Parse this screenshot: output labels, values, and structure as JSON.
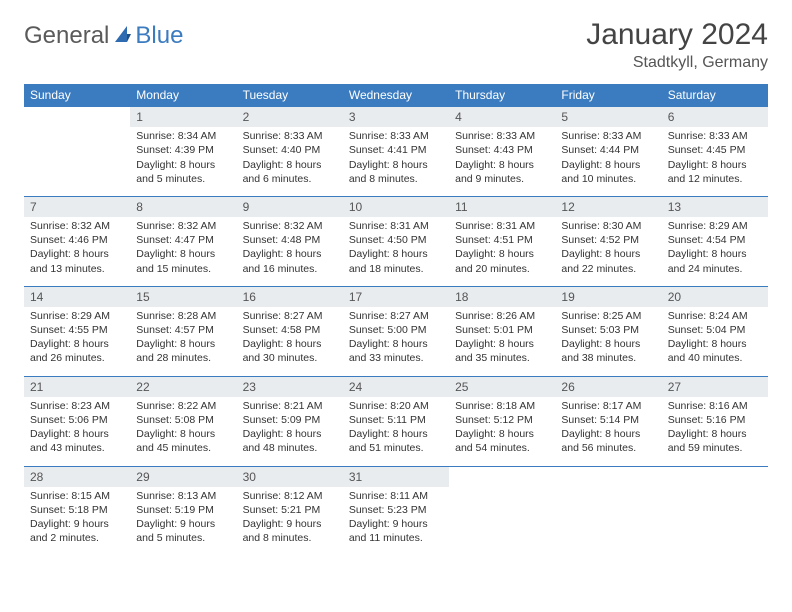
{
  "logo": {
    "general": "General",
    "blue": "Blue"
  },
  "title": "January 2024",
  "location": "Stadtkyll, Germany",
  "colors": {
    "header_bg": "#3b7bbf",
    "header_text": "#ffffff",
    "daynum_bg": "#e9ecef",
    "border": "#3b7bbf",
    "body_text": "#333333",
    "logo_gray": "#5a5a5a",
    "logo_blue": "#3b7bbf"
  },
  "typography": {
    "title_fontsize": 30,
    "location_fontsize": 16,
    "dayheader_fontsize": 12,
    "daynum_fontsize": 12,
    "cell_fontsize": 10.5
  },
  "day_headers": [
    "Sunday",
    "Monday",
    "Tuesday",
    "Wednesday",
    "Thursday",
    "Friday",
    "Saturday"
  ],
  "weeks": [
    {
      "nums": [
        "",
        "1",
        "2",
        "3",
        "4",
        "5",
        "6"
      ],
      "cells": [
        null,
        {
          "sunrise": "Sunrise: 8:34 AM",
          "sunset": "Sunset: 4:39 PM",
          "daylight": "Daylight: 8 hours and 5 minutes."
        },
        {
          "sunrise": "Sunrise: 8:33 AM",
          "sunset": "Sunset: 4:40 PM",
          "daylight": "Daylight: 8 hours and 6 minutes."
        },
        {
          "sunrise": "Sunrise: 8:33 AM",
          "sunset": "Sunset: 4:41 PM",
          "daylight": "Daylight: 8 hours and 8 minutes."
        },
        {
          "sunrise": "Sunrise: 8:33 AM",
          "sunset": "Sunset: 4:43 PM",
          "daylight": "Daylight: 8 hours and 9 minutes."
        },
        {
          "sunrise": "Sunrise: 8:33 AM",
          "sunset": "Sunset: 4:44 PM",
          "daylight": "Daylight: 8 hours and 10 minutes."
        },
        {
          "sunrise": "Sunrise: 8:33 AM",
          "sunset": "Sunset: 4:45 PM",
          "daylight": "Daylight: 8 hours and 12 minutes."
        }
      ]
    },
    {
      "nums": [
        "7",
        "8",
        "9",
        "10",
        "11",
        "12",
        "13"
      ],
      "cells": [
        {
          "sunrise": "Sunrise: 8:32 AM",
          "sunset": "Sunset: 4:46 PM",
          "daylight": "Daylight: 8 hours and 13 minutes."
        },
        {
          "sunrise": "Sunrise: 8:32 AM",
          "sunset": "Sunset: 4:47 PM",
          "daylight": "Daylight: 8 hours and 15 minutes."
        },
        {
          "sunrise": "Sunrise: 8:32 AM",
          "sunset": "Sunset: 4:48 PM",
          "daylight": "Daylight: 8 hours and 16 minutes."
        },
        {
          "sunrise": "Sunrise: 8:31 AM",
          "sunset": "Sunset: 4:50 PM",
          "daylight": "Daylight: 8 hours and 18 minutes."
        },
        {
          "sunrise": "Sunrise: 8:31 AM",
          "sunset": "Sunset: 4:51 PM",
          "daylight": "Daylight: 8 hours and 20 minutes."
        },
        {
          "sunrise": "Sunrise: 8:30 AM",
          "sunset": "Sunset: 4:52 PM",
          "daylight": "Daylight: 8 hours and 22 minutes."
        },
        {
          "sunrise": "Sunrise: 8:29 AM",
          "sunset": "Sunset: 4:54 PM",
          "daylight": "Daylight: 8 hours and 24 minutes."
        }
      ]
    },
    {
      "nums": [
        "14",
        "15",
        "16",
        "17",
        "18",
        "19",
        "20"
      ],
      "cells": [
        {
          "sunrise": "Sunrise: 8:29 AM",
          "sunset": "Sunset: 4:55 PM",
          "daylight": "Daylight: 8 hours and 26 minutes."
        },
        {
          "sunrise": "Sunrise: 8:28 AM",
          "sunset": "Sunset: 4:57 PM",
          "daylight": "Daylight: 8 hours and 28 minutes."
        },
        {
          "sunrise": "Sunrise: 8:27 AM",
          "sunset": "Sunset: 4:58 PM",
          "daylight": "Daylight: 8 hours and 30 minutes."
        },
        {
          "sunrise": "Sunrise: 8:27 AM",
          "sunset": "Sunset: 5:00 PM",
          "daylight": "Daylight: 8 hours and 33 minutes."
        },
        {
          "sunrise": "Sunrise: 8:26 AM",
          "sunset": "Sunset: 5:01 PM",
          "daylight": "Daylight: 8 hours and 35 minutes."
        },
        {
          "sunrise": "Sunrise: 8:25 AM",
          "sunset": "Sunset: 5:03 PM",
          "daylight": "Daylight: 8 hours and 38 minutes."
        },
        {
          "sunrise": "Sunrise: 8:24 AM",
          "sunset": "Sunset: 5:04 PM",
          "daylight": "Daylight: 8 hours and 40 minutes."
        }
      ]
    },
    {
      "nums": [
        "21",
        "22",
        "23",
        "24",
        "25",
        "26",
        "27"
      ],
      "cells": [
        {
          "sunrise": "Sunrise: 8:23 AM",
          "sunset": "Sunset: 5:06 PM",
          "daylight": "Daylight: 8 hours and 43 minutes."
        },
        {
          "sunrise": "Sunrise: 8:22 AM",
          "sunset": "Sunset: 5:08 PM",
          "daylight": "Daylight: 8 hours and 45 minutes."
        },
        {
          "sunrise": "Sunrise: 8:21 AM",
          "sunset": "Sunset: 5:09 PM",
          "daylight": "Daylight: 8 hours and 48 minutes."
        },
        {
          "sunrise": "Sunrise: 8:20 AM",
          "sunset": "Sunset: 5:11 PM",
          "daylight": "Daylight: 8 hours and 51 minutes."
        },
        {
          "sunrise": "Sunrise: 8:18 AM",
          "sunset": "Sunset: 5:12 PM",
          "daylight": "Daylight: 8 hours and 54 minutes."
        },
        {
          "sunrise": "Sunrise: 8:17 AM",
          "sunset": "Sunset: 5:14 PM",
          "daylight": "Daylight: 8 hours and 56 minutes."
        },
        {
          "sunrise": "Sunrise: 8:16 AM",
          "sunset": "Sunset: 5:16 PM",
          "daylight": "Daylight: 8 hours and 59 minutes."
        }
      ]
    },
    {
      "nums": [
        "28",
        "29",
        "30",
        "31",
        "",
        "",
        ""
      ],
      "cells": [
        {
          "sunrise": "Sunrise: 8:15 AM",
          "sunset": "Sunset: 5:18 PM",
          "daylight": "Daylight: 9 hours and 2 minutes."
        },
        {
          "sunrise": "Sunrise: 8:13 AM",
          "sunset": "Sunset: 5:19 PM",
          "daylight": "Daylight: 9 hours and 5 minutes."
        },
        {
          "sunrise": "Sunrise: 8:12 AM",
          "sunset": "Sunset: 5:21 PM",
          "daylight": "Daylight: 9 hours and 8 minutes."
        },
        {
          "sunrise": "Sunrise: 8:11 AM",
          "sunset": "Sunset: 5:23 PM",
          "daylight": "Daylight: 9 hours and 11 minutes."
        },
        null,
        null,
        null
      ]
    }
  ]
}
